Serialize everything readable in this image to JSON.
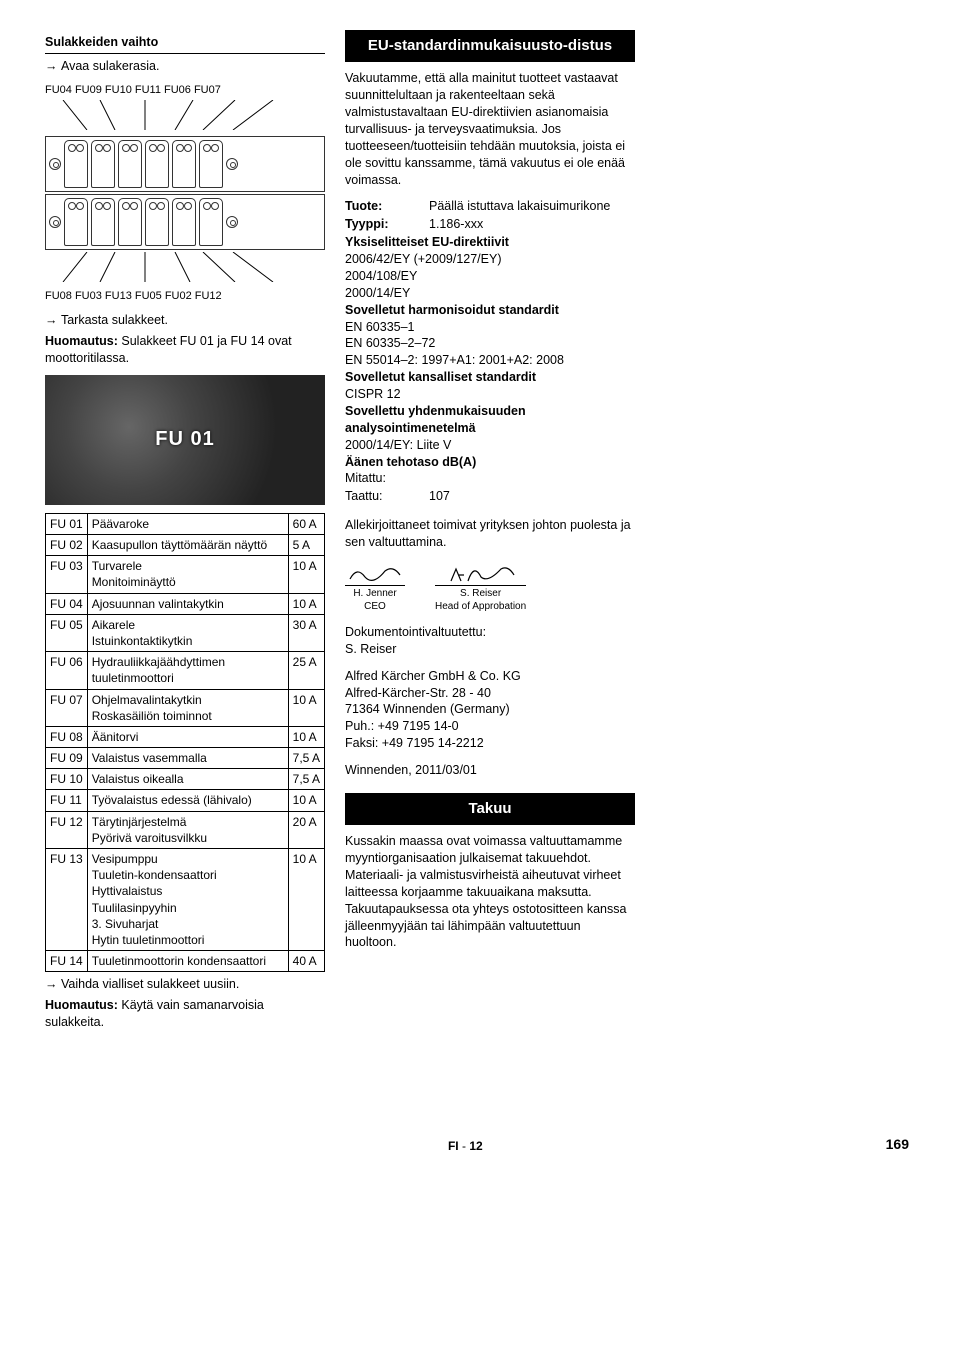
{
  "left": {
    "heading_fuse_change": "Sulakkeiden vaihto",
    "open_fusebox": "Avaa sulakerasia.",
    "labels_top": "FU04  FU09   FU10    FU11  FU06 FU07",
    "labels_bottom": "FU08 FU03    FU13   FU05  FU02  FU12",
    "check_fuses": "Tarkasta sulakkeet.",
    "note1_label": "Huomautus:",
    "note1_text": " Sulakkeet FU 01 ja FU 14 ovat moottoritilassa.",
    "photo_label": "FU 01",
    "replace_faulty": "Vaihda vialliset sulakkeet uusiin.",
    "note2_label": "Huomautus:",
    "note2_text": " Käytä vain samanarvoisia sulakkeita."
  },
  "fuse_table": [
    {
      "id": "FU 01",
      "desc": "Päävaroke",
      "amp": "60 A"
    },
    {
      "id": "FU 02",
      "desc": "Kaasupullon täyttömäärän näyttö",
      "amp": "5 A"
    },
    {
      "id": "FU 03",
      "desc": "Turvarele\nMonitoiminäyttö",
      "amp": "10 A"
    },
    {
      "id": "FU 04",
      "desc": "Ajosuunnan valintakytkin",
      "amp": "10 A"
    },
    {
      "id": "FU 05",
      "desc": "Aikarele\nIstuinkontaktikytkin",
      "amp": "30 A"
    },
    {
      "id": "FU 06",
      "desc": "Hydrauliikkajäähdyttimen tuuletinmoottori",
      "amp": "25 A"
    },
    {
      "id": "FU 07",
      "desc": "Ohjelmavalintakytkin\nRoskasäiliön toiminnot",
      "amp": "10 A"
    },
    {
      "id": "FU 08",
      "desc": "Äänitorvi",
      "amp": "10 A"
    },
    {
      "id": "FU 09",
      "desc": "Valaistus vasemmalla",
      "amp": "7,5 A"
    },
    {
      "id": "FU 10",
      "desc": "Valaistus oikealla",
      "amp": "7,5 A"
    },
    {
      "id": "FU 11",
      "desc": "Työvalaistus edessä (lähivalo)",
      "amp": "10 A"
    },
    {
      "id": "FU 12",
      "desc": "Tärytinjärjestelmä\nPyörivä varoitusvilkku",
      "amp": "20 A"
    },
    {
      "id": "FU 13",
      "desc": "Vesipumppu\nTuuletin-kondensaattori\nHyttivalaistus\nTuulilasinpyyhin\n3. Sivuharjat\nHytin tuuletinmoottori",
      "amp": "10 A"
    },
    {
      "id": "FU 14",
      "desc": "Tuuletinmoottorin kondensaattori",
      "amp": "40 A"
    }
  ],
  "right": {
    "heading_eu": "EU-standardinmukaisuusto-distus",
    "eu_decl": "Vakuutamme, että alla mainitut tuotteet vastaavat suunnittelultaan ja rakenteeltaan sekä valmistustavaltaan EU-direktiivien asianomaisia turvallisuus- ja terveysvaatimuksia. Jos tuotteeseen/tuotteisiin tehdään muutoksia, joista ei ole sovittu kanssamme, tämä vakuutus ei ole enää voimassa.",
    "spec": {
      "product_label": "Tuote:",
      "product_value": "Päällä istuttava lakaisuimurikone",
      "type_label": "Tyyppi:",
      "type_value": "1.186-xxx",
      "directives_heading": "Yksiselitteiset EU-direktiivit",
      "directives": [
        "2006/42/EY (+2009/127/EY)",
        "2004/108/EY",
        "2000/14/EY"
      ],
      "harmonized_heading": "Sovelletut harmonisoidut standardit",
      "harmonized": [
        "EN 60335–1",
        "EN 60335–2–72",
        "EN 55014–2: 1997+A1: 2001+A2: 2008"
      ],
      "national_heading": "Sovelletut kansalliset standardit",
      "national": [
        "CISPR 12"
      ],
      "conf_method_heading": "Sovellettu yhdenmukaisuuden analysointimenetelmä",
      "conf_method": "2000/14/EY: Liite V",
      "sound_heading": "Äänen tehotaso dB(A)",
      "measured_label": "Mitattu:",
      "guaranteed_label": "Taattu:",
      "guaranteed_value": "107"
    },
    "signatories_para": "Allekirjoittaneet toimivat yrityksen johton puolesta ja sen valtuuttamina.",
    "sig1": {
      "name": "H. Jenner",
      "role": "CEO",
      "script": "H.J"
    },
    "sig2": {
      "name": "S. Reiser",
      "role": "Head of Approbation",
      "script": "S.R"
    },
    "doc_agent_label": "Dokumentointivaltuutettu:",
    "doc_agent_name": "S. Reiser",
    "company": "Alfred Kärcher GmbH & Co. KG",
    "address1": "Alfred-Kärcher-Str. 28 - 40",
    "address2": "71364 Winnenden (Germany)",
    "phone": "Puh.: +49 7195 14-0",
    "fax": "Faksi: +49 7195 14-2212",
    "place_date": "Winnenden, 2011/03/01",
    "heading_warranty": "Takuu",
    "warranty_text": "Kussakin maassa ovat voimassa valtuuttamamme myyntiorganisaation julkaisemat takuuehdot. Materiaali- ja valmistusvirheistä aiheutuvat virheet laitteessa korjaamme takuuaikana maksutta. Takuutapauksessa ota yhteys ostotositteen kanssa jälleenmyyjään tai lähimpään valtuutettuun huoltoon."
  },
  "footer": {
    "lang": "FI",
    "sep": " - ",
    "page_sub": "12",
    "page_main": "169"
  },
  "colors": {
    "band_bg": "#000000",
    "band_fg": "#ffffff",
    "text": "#000000",
    "page_bg": "#ffffff"
  }
}
